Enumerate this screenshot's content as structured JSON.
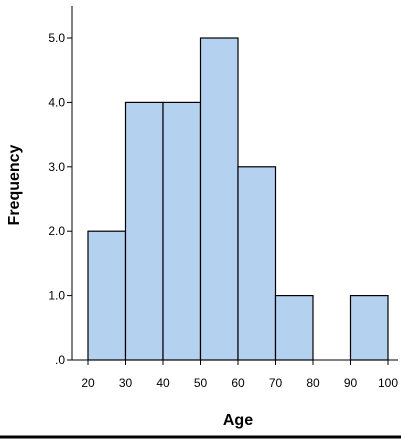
{
  "chart_data": {
    "type": "bar",
    "subtype": "histogram",
    "xlabel": "Age",
    "ylabel": "Frequency",
    "bins": [
      {
        "start": 20,
        "end": 30,
        "count": 2
      },
      {
        "start": 30,
        "end": 40,
        "count": 4
      },
      {
        "start": 40,
        "end": 50,
        "count": 4
      },
      {
        "start": 50,
        "end": 60,
        "count": 5
      },
      {
        "start": 60,
        "end": 70,
        "count": 3
      },
      {
        "start": 70,
        "end": 80,
        "count": 1
      },
      {
        "start": 80,
        "end": 90,
        "count": 0
      },
      {
        "start": 90,
        "end": 100,
        "count": 1
      }
    ],
    "xticks": [
      "20",
      "30",
      "40",
      "50",
      "60",
      "70",
      "80",
      "90",
      "100"
    ],
    "yticks": [
      {
        "value": 0,
        "label": ".0"
      },
      {
        "value": 1,
        "label": "1.0"
      },
      {
        "value": 2,
        "label": "2.0"
      },
      {
        "value": 3,
        "label": "3.0"
      },
      {
        "value": 4,
        "label": "4.0"
      },
      {
        "value": 5,
        "label": "5.0"
      }
    ],
    "xlim": [
      20,
      100
    ],
    "ylim": [
      0,
      5.5
    ],
    "grid": false,
    "bar_color": "#b4d2ef",
    "edge_color": "#000000"
  }
}
